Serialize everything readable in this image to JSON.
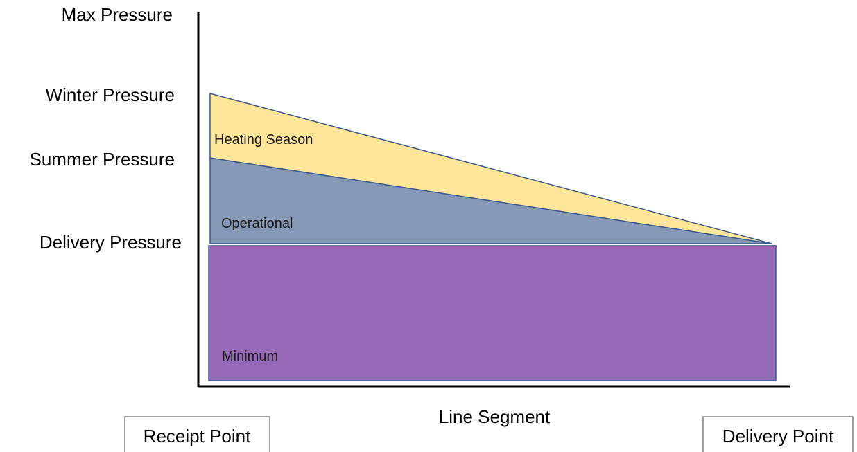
{
  "y_axis_levels": [
    {
      "name": "max",
      "label": "Max Pressure"
    },
    {
      "name": "winter",
      "label": "Winter Pressure"
    },
    {
      "name": "summer",
      "label": "Summer Pressure"
    },
    {
      "name": "delivery",
      "label": "Delivery Pressure"
    }
  ],
  "regions": {
    "heating": {
      "label": "Heating Season",
      "color": "#fde599"
    },
    "operational": {
      "label": "Operational",
      "color": "#8599b6"
    },
    "minimum": {
      "label": "Minimum",
      "color": "#9669b7"
    }
  },
  "outline_color": "#3b5a8c",
  "x_axis": {
    "label": "Line Segment"
  },
  "endpoints": {
    "receipt": "Receipt Point",
    "delivery": "Delivery Point"
  }
}
